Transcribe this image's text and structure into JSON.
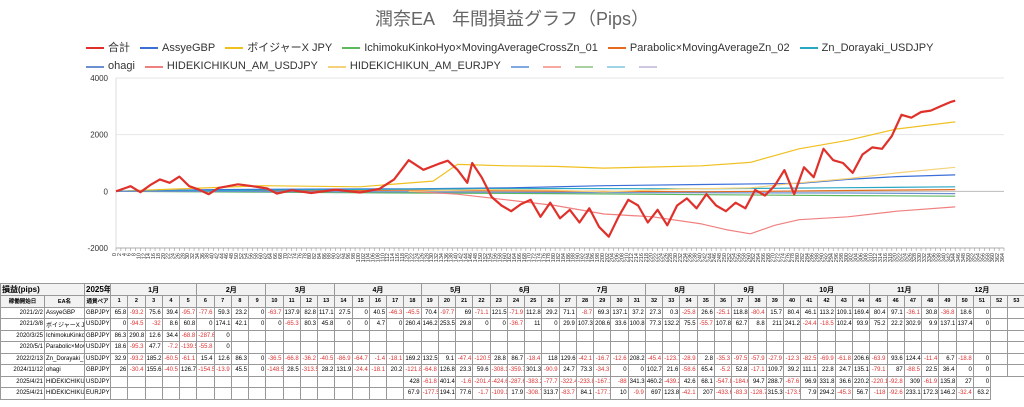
{
  "chart_data": {
    "type": "line",
    "title": "潤奈EA　年間損益グラフ（Pips）",
    "ylim": [
      -2000,
      4000
    ],
    "yticks": [
      -2000,
      0,
      2000,
      4000
    ],
    "xlim": [
      0,
      364
    ],
    "grid": true,
    "legend_position": "top",
    "series": [
      {
        "name": "合計",
        "color": "#e0302a",
        "width": 2.2,
        "x": [
          0,
          6,
          10,
          14,
          18,
          22,
          26,
          30,
          34,
          38,
          42,
          50,
          56,
          62,
          66,
          72,
          80,
          90,
          100,
          108,
          114,
          120,
          126,
          132,
          136,
          140,
          144,
          146,
          150,
          154,
          158,
          162,
          166,
          170,
          174,
          178,
          182,
          186,
          190,
          194,
          198,
          202,
          206,
          210,
          214,
          218,
          222,
          226,
          230,
          234,
          238,
          242,
          246,
          250,
          254,
          258,
          262,
          266,
          270,
          274,
          278,
          282,
          286,
          290,
          294,
          298,
          302,
          306,
          310,
          314,
          318,
          322,
          326,
          330,
          334,
          338,
          342,
          344
        ],
        "y": [
          0,
          180,
          -30,
          220,
          420,
          300,
          520,
          180,
          60,
          -100,
          120,
          250,
          180,
          100,
          -80,
          40,
          -60,
          60,
          -40,
          90,
          420,
          1100,
          760,
          960,
          1080,
          760,
          300,
          1000,
          480,
          -200,
          -500,
          -700,
          -450,
          -300,
          -900,
          -400,
          -950,
          -650,
          -1100,
          -600,
          -1250,
          -1600,
          -900,
          -300,
          -500,
          -1100,
          -650,
          -1200,
          -500,
          -250,
          -600,
          -100,
          -500,
          -700,
          -400,
          -600,
          50,
          -150,
          200,
          750,
          -100,
          850,
          500,
          1500,
          1100,
          1000,
          650,
          1300,
          1550,
          1500,
          1950,
          2700,
          2600,
          2800,
          2850,
          3000,
          3150,
          3200
        ]
      },
      {
        "name": "AssyeGBP",
        "color": "#3a6fd8",
        "width": 1.2,
        "x": [
          0,
          40,
          80,
          120,
          160,
          200,
          240,
          280,
          300,
          320,
          344
        ],
        "y": [
          0,
          60,
          80,
          90,
          120,
          200,
          240,
          280,
          420,
          520,
          580
        ]
      },
      {
        "name": "ボイジャーX JPY",
        "color": "#f0c020",
        "width": 1.2,
        "x": [
          0,
          30,
          60,
          100,
          130,
          140,
          160,
          180,
          200,
          220,
          240,
          260,
          280,
          300,
          320,
          344
        ],
        "y": [
          0,
          100,
          200,
          160,
          360,
          950,
          900,
          880,
          820,
          860,
          900,
          1020,
          1500,
          1800,
          2200,
          2450
        ]
      },
      {
        "name": "IchimokuKinkoHyo×MovingAverageCrossZn_01",
        "color": "#5cb85c",
        "width": 1.2,
        "x": [
          0,
          60,
          120,
          180,
          240,
          300,
          344
        ],
        "y": [
          0,
          -30,
          -60,
          -80,
          -120,
          -150,
          -170
        ]
      },
      {
        "name": "Parabolic×MovingAverageZn_02",
        "color": "#e56b1f",
        "width": 1.2,
        "x": [
          0,
          60,
          120,
          180,
          240,
          300,
          344
        ],
        "y": [
          0,
          20,
          40,
          10,
          -20,
          30,
          60
        ]
      },
      {
        "name": "Zn_Dorayaki_USDJPY",
        "color": "#2aa7c4",
        "width": 1.2,
        "x": [
          0,
          60,
          120,
          180,
          240,
          300,
          344
        ],
        "y": [
          0,
          40,
          80,
          100,
          90,
          130,
          160
        ]
      },
      {
        "name": "ohagi",
        "color": "#6b8fd0",
        "width": 1.2,
        "x": [
          0,
          60,
          120,
          180,
          240,
          300,
          344
        ],
        "y": [
          0,
          -10,
          -20,
          -40,
          -50,
          -60,
          -80
        ]
      },
      {
        "name": "HIDEKICHIKUN_AM_USDJPY",
        "color": "#f08080",
        "width": 1.2,
        "x": [
          120,
          140,
          160,
          180,
          200,
          220,
          240,
          250,
          260,
          270,
          280,
          300,
          320,
          344
        ],
        "y": [
          0,
          -100,
          -300,
          -500,
          -800,
          -900,
          -1150,
          -1350,
          -1500,
          -1200,
          -1000,
          -900,
          -700,
          -550
        ]
      },
      {
        "name": "HIDEKICHIKUN_AM_EURJPY",
        "color": "#f5d27a",
        "width": 1.2,
        "x": [
          120,
          150,
          180,
          200,
          230,
          260,
          280,
          300,
          320,
          344
        ],
        "y": [
          0,
          60,
          40,
          -20,
          80,
          120,
          300,
          450,
          650,
          850
        ]
      }
    ],
    "extra_legend_series_colors": [
      "#7fa8e0",
      "#f7a8a0",
      "#aacfa0",
      "#a0d4e4",
      "#d0c8e0"
    ]
  },
  "legend": [
    {
      "label": "合計",
      "color": "#e0302a"
    },
    {
      "label": "AssyeGBP",
      "color": "#3a6fd8"
    },
    {
      "label": "ボイジャーX JPY",
      "color": "#f0c020"
    },
    {
      "label": "IchimokuKinkoHyo×MovingAverageCrossZn_01",
      "color": "#5cb85c"
    },
    {
      "label": "Parabolic×MovingAverageZn_02",
      "color": "#e56b1f"
    },
    {
      "label": "Zn_Dorayaki_USDJPY",
      "color": "#2aa7c4"
    },
    {
      "label": "ohagi",
      "color": "#6b8fd0"
    },
    {
      "label": "HIDEKICHIKUN_AM_USDJPY",
      "color": "#f08080"
    },
    {
      "label": "HIDEKICHIKUN_AM_EURJPY",
      "color": "#f5d27a"
    }
  ],
  "table": {
    "corner_label": "損益(pips)",
    "year_label": "2025年",
    "months": [
      "1月",
      "2月",
      "3月",
      "4月",
      "5月",
      "6月",
      "7月",
      "8月",
      "9月",
      "10月",
      "11月",
      "12月"
    ],
    "month_week_spans": [
      5,
      4,
      4,
      5,
      4,
      4,
      5,
      4,
      4,
      5,
      4,
      5
    ],
    "sub_headers": [
      "稼働開始日",
      "EA名",
      "通貨ペア"
    ],
    "weeks": [
      "1",
      "2",
      "3",
      "4",
      "5",
      "6",
      "7",
      "8",
      "9",
      "10",
      "11",
      "12",
      "13",
      "14",
      "15",
      "16",
      "17",
      "18",
      "19",
      "20",
      "21",
      "22",
      "23",
      "24",
      "25",
      "26",
      "27",
      "28",
      "29",
      "30",
      "31",
      "32",
      "33",
      "34",
      "35",
      "36",
      "37",
      "38",
      "39",
      "40",
      "41",
      "42",
      "43",
      "44",
      "45",
      "46",
      "47",
      "48",
      "49",
      "50",
      "51",
      "52",
      "53"
    ],
    "rows": [
      {
        "start": "2021/2/2",
        "ea": "AssyeGBP",
        "pair": "GBPJPY",
        "vals": [
          "65.8",
          "-93.2",
          "75.6",
          "39.4",
          "-95.7",
          "-77.6",
          "59.3",
          "23.2",
          "0",
          "-63.7",
          "137.9",
          "82.8",
          "117.1",
          "27.5",
          "0",
          "40.5",
          "-46.3",
          "-45.5",
          "70.4",
          "-97.7",
          "69",
          "-71.1",
          "121.5",
          "-71.9",
          "112.8",
          "29.2",
          "71.1",
          "-8.7",
          "69.3",
          "137.1",
          "37.2",
          "27.3",
          "0.3",
          "-25.8",
          "26.6",
          "-25.1",
          "118.8",
          "-80.4",
          "15.7",
          "80.4",
          "46.1",
          "113.2",
          "109.1",
          "169.4",
          "80.4",
          "97.1",
          "-36.1",
          "30.8",
          "-36.8",
          "18.6",
          "0",
          "",
          ""
        ]
      },
      {
        "start": "2021/3/8",
        "ea": "ボイジャーX JPY",
        "pair": "USDJPY",
        "vals": [
          "0",
          "-94.5",
          "-32",
          "8.6",
          "60.8",
          "0",
          "174.1",
          "42.1",
          "0",
          "0",
          "-65.3",
          "80.3",
          "45.8",
          "0",
          "0",
          "4.7",
          "0",
          "260.4",
          "146.2",
          "253.5",
          "29.8",
          "0",
          "0",
          "-36.7",
          "11",
          "0",
          "29.9",
          "107.3",
          "208.6",
          "33.6",
          "100.8",
          "77.3",
          "132.2",
          "75.5",
          "-55.7",
          "107.8",
          "62.7",
          "8.8",
          "211",
          "241.2",
          "-24.4",
          "-18.5",
          "102.4",
          "93.9",
          "75.2",
          "22.2",
          "302.9",
          "9.9",
          "137.1",
          "137.4",
          "0",
          "",
          ""
        ]
      },
      {
        "start": "2020/3/25",
        "ea": "IchimokuKinkoHyo",
        "pair": "GBPJPY",
        "vals": [
          "86.3",
          "290.8",
          "12.6",
          "34.4",
          "-68.8",
          "-287.6",
          "0",
          "",
          "",
          "",
          "",
          "",
          "",
          "",
          "",
          "",
          "",
          "",
          "",
          "",
          "",
          "",
          "",
          "",
          "",
          "",
          "",
          "",
          "",
          "",
          "",
          "",
          "",
          "",
          "",
          "",
          "",
          "",
          "",
          "",
          "",
          "",
          "",
          "",
          "",
          "",
          "",
          "",
          "",
          "",
          "",
          "",
          ""
        ]
      },
      {
        "start": "2020/5/1",
        "ea": "Parabolic×MovingA",
        "pair": "USDJPY",
        "vals": [
          "18.6",
          "-95.3",
          "47.7",
          "-7.2",
          "-139.5",
          "-55.8",
          "0",
          "",
          "",
          "",
          "",
          "",
          "",
          "",
          "",
          "",
          "",
          "",
          "",
          "",
          "",
          "",
          "",
          "",
          "",
          "",
          "",
          "",
          "",
          "",
          "",
          "",
          "",
          "",
          "",
          "",
          "",
          "",
          "",
          "",
          "",
          "",
          "",
          "",
          "",
          "",
          "",
          "",
          "",
          "",
          "",
          "",
          ""
        ]
      },
      {
        "start": "2022/2/13",
        "ea": "Zn_Dorayaki_USD",
        "pair": "USDJPY",
        "vals": [
          "32.9",
          "-93.2",
          "185.2",
          "-60.5",
          "-61.1",
          "15.4",
          "12.6",
          "86.3",
          "0",
          "-36.5",
          "-66.8",
          "-36.2",
          "-40.5",
          "-86.9",
          "-64.7",
          "-1.4",
          "-18.1",
          "169.2",
          "132.5",
          "9.1",
          "-47.4",
          "-120.5",
          "28.8",
          "86.7",
          "-18.4",
          "118",
          "129.6",
          "-42.1",
          "-16.7",
          "-12.6",
          "208.2",
          "-45.4",
          "-123.7",
          "-28.9",
          "2.8",
          "-35.3",
          "-97.5",
          "-57.9",
          "-27.9",
          "-12.3",
          "-82.5",
          "-69.9",
          "-61.8",
          "206.6",
          "-63.9",
          "93.6",
          "124.4",
          "-11.4",
          "6.7",
          "-18.8",
          "0",
          "",
          ""
        ]
      },
      {
        "start": "2024/11/12",
        "ea": "ohagi",
        "pair": "GBPJPY",
        "vals": [
          "26",
          "-30.4",
          "155.6",
          "-40.5",
          "126.7",
          "-154.5",
          "-13.9",
          "45.5",
          "0",
          "-148.5",
          "28.5",
          "-313.5",
          "28.2",
          "131.9",
          "-24.4",
          "-18.1",
          "20.2",
          "-121.8",
          "-64.8",
          "126.8",
          "23.3",
          "59.6",
          "-308.1",
          "-359.7",
          "301.3",
          "-90.9",
          "24.7",
          "73.3",
          "-34.3",
          "0",
          "0",
          "102.7",
          "21.6",
          "-58.6",
          "65.4",
          "-5.2",
          "52.8",
          "-17.1",
          "109.7",
          "39.2",
          "111.1",
          "22.8",
          "24.7",
          "135.1",
          "-79.1",
          "87",
          "-88.5",
          "22.5",
          "36.4",
          "0",
          "0",
          "",
          ""
        ]
      },
      {
        "start": "2025/4/21",
        "ea": "HIDEKICHIKUN_A",
        "pair": "USDJPY",
        "vals": [
          "",
          "",
          "",
          "",
          "",
          "",
          "",
          "",
          "",
          "",
          "",
          "",
          "",
          "",
          "",
          "",
          "",
          "428",
          "-61.8",
          "401.4",
          "-1.6",
          "-201.4",
          "-424.6",
          "-287.6",
          "-383.2",
          "-77.7",
          "-322.4",
          "-233.8",
          "-167.1",
          "-88",
          "341.3",
          "460.2",
          "-439.2",
          "42.6",
          "68.1",
          "-547.8",
          "-184.6",
          "94.7",
          "288.7",
          "-67.6",
          "96.9",
          "331.8",
          "36.6",
          "220.2",
          "-220.1",
          "-92.8",
          "309",
          "-61.9",
          "135.8",
          "27",
          "0"
        ]
      },
      {
        "start": "2025/4/21",
        "ea": "HIDEKICHIKUN_A",
        "pair": "EURJPY",
        "vals": [
          "",
          "",
          "",
          "",
          "",
          "",
          "",
          "",
          "",
          "",
          "",
          "",
          "",
          "",
          "",
          "",
          "",
          "67.9",
          "-177.5",
          "194.1",
          "77.6",
          "-1.7",
          "-109.1",
          "17.9",
          "-308.7",
          "313.7",
          "-83.7",
          "84.1",
          "-177.1",
          "10",
          "-9.9",
          "697",
          "123.8",
          "-42.1",
          "207",
          "-433.6",
          "-83.3",
          "-128.7",
          "315.3",
          "-173.5",
          "7.9",
          "294.2",
          "-45.3",
          "56.7",
          "-118",
          "-92.6",
          "233.1",
          "172.3",
          "146.2",
          "-32.4",
          "63.2"
        ]
      }
    ]
  }
}
